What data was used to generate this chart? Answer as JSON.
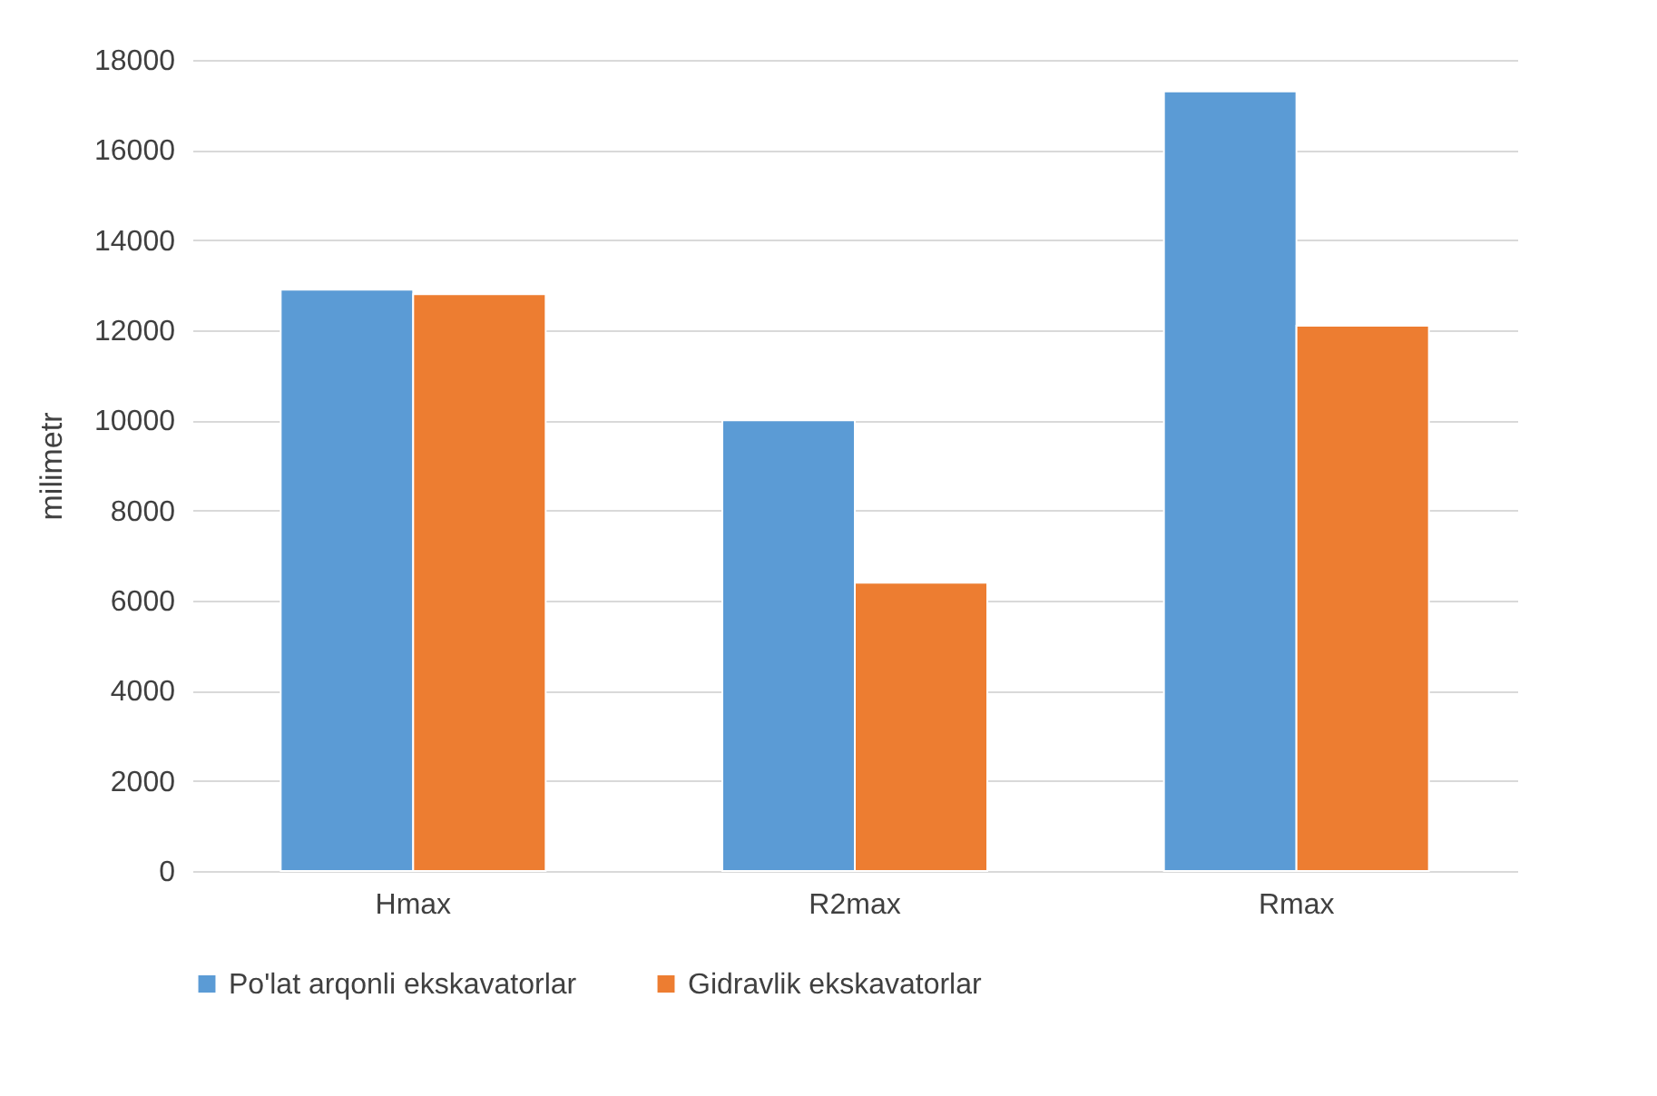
{
  "chart_data": {
    "type": "bar",
    "ylabel": "milimetr",
    "categories": [
      "Hmax",
      "R2max",
      "Rmax"
    ],
    "series": [
      {
        "name": "Po'lat arqonli ekskavatorlar",
        "color": "#5b9bd5",
        "values": [
          12900,
          10000,
          17300
        ]
      },
      {
        "name": "Gidravlik ekskavatorlar",
        "color": "#ed7d31",
        "values": [
          12800,
          6400,
          12100
        ]
      }
    ],
    "ylim": [
      0,
      18000
    ],
    "yticks": [
      0,
      2000,
      4000,
      6000,
      8000,
      10000,
      12000,
      14000,
      16000,
      18000
    ],
    "grid": "y",
    "legend": "bottom"
  }
}
